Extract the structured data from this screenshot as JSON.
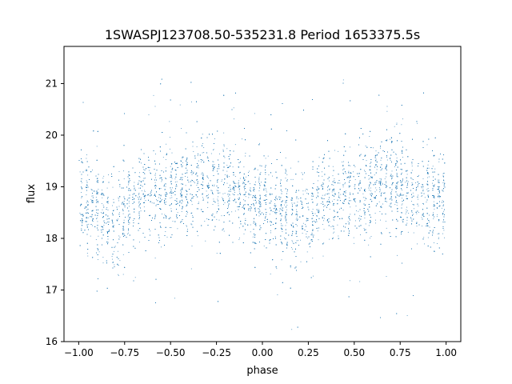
{
  "chart_data": {
    "type": "scatter",
    "title": "1SWASPJ123708.50-535231.8 Period 1653375.5s",
    "xlabel": "phase",
    "ylabel": "flux",
    "xlim": [
      -1.08,
      1.08
    ],
    "ylim": [
      16.0,
      21.72
    ],
    "x_ticks": [
      -1.0,
      -0.75,
      -0.5,
      -0.25,
      0.0,
      0.25,
      0.5,
      0.75,
      1.0
    ],
    "x_tick_labels": [
      "−1.00",
      "−0.75",
      "−0.50",
      "−0.25",
      "0.00",
      "0.25",
      "0.50",
      "0.75",
      "1.00"
    ],
    "y_ticks": [
      16,
      17,
      18,
      19,
      20,
      21
    ],
    "y_tick_labels": [
      "16",
      "17",
      "18",
      "19",
      "20",
      "21"
    ],
    "grid": false,
    "marker_color": "#1f77b4",
    "series": [
      {
        "phase_profile": {
          "x": [
            -1.0,
            -0.95,
            -0.9,
            -0.85,
            -0.8,
            -0.75,
            -0.7,
            -0.65,
            -0.6,
            -0.55,
            -0.5,
            -0.45,
            -0.4,
            -0.35,
            -0.3,
            -0.25,
            -0.2,
            -0.15,
            -0.1,
            -0.05,
            0.0,
            0.05,
            0.1,
            0.15,
            0.2,
            0.25,
            0.3,
            0.35,
            0.4,
            0.45,
            0.5,
            0.55,
            0.6,
            0.65,
            0.7,
            0.75,
            0.8,
            0.85,
            0.9,
            0.95,
            1.0
          ],
          "median_flux": [
            18.8,
            18.6,
            18.6,
            18.4,
            18.3,
            18.4,
            18.7,
            18.8,
            18.8,
            18.9,
            19.0,
            18.9,
            19.0,
            19.1,
            19.1,
            19.0,
            18.9,
            18.9,
            18.8,
            18.7,
            18.8,
            18.6,
            18.6,
            18.4,
            18.3,
            18.4,
            18.7,
            18.8,
            18.8,
            18.9,
            19.0,
            18.9,
            19.0,
            19.1,
            19.1,
            19.0,
            18.9,
            18.9,
            18.8,
            18.7,
            18.8
          ],
          "spread": 0.45
        }
      }
    ]
  }
}
